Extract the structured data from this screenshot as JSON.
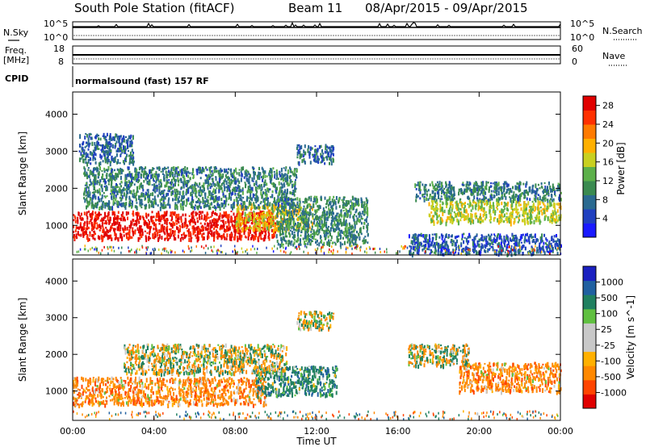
{
  "header": {
    "station": "South Pole Station (fitACF)",
    "beam": "Beam 11",
    "date_range": "08/Apr/2015 - 09/Apr/2015"
  },
  "noise_panel": {
    "left_label": "N.Sky",
    "right_label": "N.Search",
    "tick_top": "10^5",
    "tick_bottom": "10^0"
  },
  "freq_panel": {
    "left_label_1": "Freq.",
    "left_label_2": "[MHz]",
    "right_label": "Nave",
    "left_tick_top": "18",
    "left_tick_bottom": "8",
    "right_tick_top": "60",
    "right_tick_bottom": "0"
  },
  "cpid_panel": {
    "label": "CPID",
    "text": "normalsound (fast) 157 RF"
  },
  "colors": {
    "power_scale": [
      "#1a1aff",
      "#2040c0",
      "#2a6a90",
      "#3a8a50",
      "#5cb04a",
      "#c8d020",
      "#ffb000",
      "#ff7a00",
      "#ff3000",
      "#e00000"
    ],
    "velocity_scale": [
      "#e00000",
      "#ff4400",
      "#ff8800",
      "#ffb000",
      "#c8c8c8",
      "#c8c8c8",
      "#60c040",
      "#208060",
      "#2060a0",
      "#1a20c0"
    ]
  },
  "chart_data": [
    {
      "type": "heatmap",
      "name": "power",
      "xlabel": "Time UT",
      "ylabel": "Slant Range [km]",
      "xlim": [
        0,
        24
      ],
      "ylim": [
        200,
        4600
      ],
      "x_ticks": [
        "00:00",
        "04:00",
        "08:00",
        "12:00",
        "16:00",
        "20:00",
        "00:00"
      ],
      "y_ticks": [
        "1000",
        "2000",
        "3000",
        "4000"
      ],
      "y_tick_values": [
        1000,
        2000,
        3000,
        4000
      ],
      "colorbar": {
        "label": "Power [dB]",
        "ticks": [
          "4",
          "8",
          "12",
          "16",
          "20",
          "24",
          "28"
        ],
        "range": [
          0,
          30
        ]
      },
      "regions": [
        {
          "x": [
            0.0,
            10.0
          ],
          "y": [
            650,
            1400
          ],
          "value": 28
        },
        {
          "x": [
            8.0,
            11.8
          ],
          "y": [
            900,
            1600
          ],
          "value": 18
        },
        {
          "x": [
            10.0,
            14.5
          ],
          "y": [
            500,
            1800
          ],
          "value": 10
        },
        {
          "x": [
            0.5,
            11.0
          ],
          "y": [
            1500,
            2600
          ],
          "value": 9
        },
        {
          "x": [
            0.3,
            3.0
          ],
          "y": [
            2700,
            3500
          ],
          "value": 7
        },
        {
          "x": [
            11.0,
            12.8
          ],
          "y": [
            2700,
            3200
          ],
          "value": 7
        },
        {
          "x": [
            16.8,
            24.0
          ],
          "y": [
            1700,
            2200
          ],
          "value": 9
        },
        {
          "x": [
            17.5,
            24.0
          ],
          "y": [
            1100,
            1700
          ],
          "value": 16
        },
        {
          "x": [
            16.5,
            24.0
          ],
          "y": [
            250,
            800
          ],
          "value": 6
        }
      ]
    },
    {
      "type": "heatmap",
      "name": "velocity",
      "xlabel": "Time UT",
      "ylabel": "Slant Range [km]",
      "xlim": [
        0,
        24
      ],
      "ylim": [
        200,
        4600
      ],
      "x_ticks": [
        "00:00",
        "04:00",
        "08:00",
        "12:00",
        "16:00",
        "20:00",
        "00:00"
      ],
      "y_ticks": [
        "1000",
        "2000",
        "3000",
        "4000"
      ],
      "y_tick_values": [
        1000,
        2000,
        3000,
        4000
      ],
      "colorbar": {
        "label": "Velocity [m s^-1]",
        "ticks": [
          "-1000",
          "-500",
          "-100",
          "-25",
          "25",
          "100",
          "500",
          "1000"
        ]
      },
      "regions": [
        {
          "x": [
            0.0,
            9.5
          ],
          "y": [
            650,
            1400
          ],
          "value": -300
        },
        {
          "x": [
            9.0,
            13.0
          ],
          "y": [
            900,
            1700
          ],
          "value": 300
        },
        {
          "x": [
            2.5,
            10.5
          ],
          "y": [
            1500,
            2300
          ],
          "value": 0
        },
        {
          "x": [
            16.5,
            19.5
          ],
          "y": [
            1700,
            2300
          ],
          "value": 0
        },
        {
          "x": [
            19.0,
            24.0
          ],
          "y": [
            1000,
            1800
          ],
          "value": -300
        },
        {
          "x": [
            11.0,
            12.8
          ],
          "y": [
            2700,
            3200
          ],
          "value": 0
        }
      ]
    }
  ]
}
